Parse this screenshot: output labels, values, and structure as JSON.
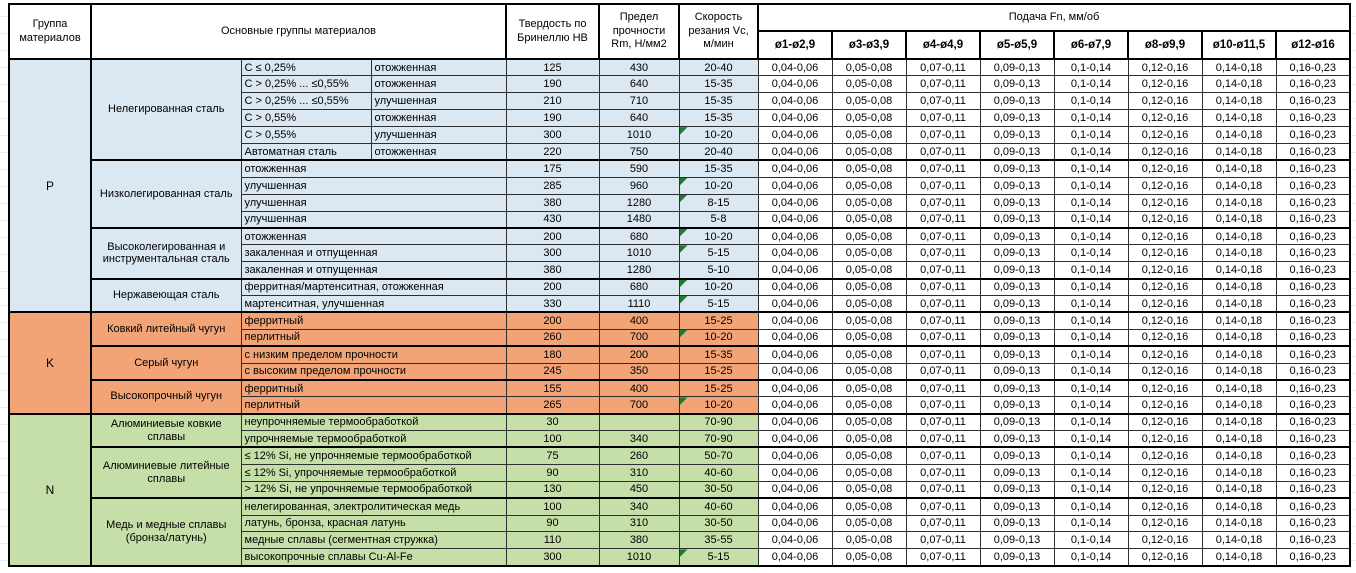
{
  "colors": {
    "steel_blue": "#dbe7f1",
    "cast_iron_orange": "#f2a477",
    "nonferrous_green": "#c6dfa8",
    "flag_green": "#1e7b34",
    "feed_bg": "#ffffff"
  },
  "header": {
    "col_group": "Группа материалов",
    "col_main": "Основные группы материалов",
    "col_hb": "Твердость по Бринеллю HB",
    "col_rm": "Предел прочности Rm, Н/мм2",
    "col_vc": "Скорость резания Vc, м/мин",
    "feed_title": "Подача Fn, мм/об",
    "feed_cols": [
      "ø1-ø2,9",
      "ø3-ø3,9",
      "ø4-ø4,9",
      "ø5-ø5,9",
      "ø6-ø7,9",
      "ø8-ø9,9",
      "ø10-ø11,5",
      "ø12-ø16"
    ]
  },
  "feed_values": [
    "0,04-0,06",
    "0,05-0,08",
    "0,07-0,11",
    "0,09-0,13",
    "0,1-0,14",
    "0,12-0,16",
    "0,14-0,18",
    "0,16-0,23"
  ],
  "sections": [
    {
      "code": "P",
      "bg": "#dbe7f1",
      "subgroups": [
        {
          "name": "Нелегированная сталь",
          "rows": [
            {
              "c1": "C ≤ 0,25%",
              "c2": "отожженная",
              "hb": "125",
              "rm": "430",
              "vc": "20-40"
            },
            {
              "c1": "C > 0,25% ... ≤0,55%",
              "c2": "отожженная",
              "hb": "190",
              "rm": "640",
              "vc": "15-35"
            },
            {
              "c1": "C > 0,25% ... ≤0,55%",
              "c2": "улучшенная",
              "hb": "210",
              "rm": "710",
              "vc": "15-35"
            },
            {
              "c1": "C > 0,55%",
              "c2": "отожженная",
              "hb": "190",
              "rm": "640",
              "vc": "15-35"
            },
            {
              "c1": "C > 0,55%",
              "c2": "улучшенная",
              "hb": "300",
              "rm": "1010",
              "vc": "10-20",
              "flag": true
            },
            {
              "c1": "Автоматная сталь",
              "c2": "отожженная",
              "hb": "220",
              "rm": "750",
              "vc": "20-40"
            }
          ]
        },
        {
          "name": "Низколегированная сталь",
          "rows": [
            {
              "desc": "отожженная",
              "hb": "175",
              "rm": "590",
              "vc": "15-35"
            },
            {
              "desc": "улучшенная",
              "hb": "285",
              "rm": "960",
              "vc": "10-20",
              "flag": true
            },
            {
              "desc": "улучшенная",
              "hb": "380",
              "rm": "1280",
              "vc": "8-15",
              "flag": true
            },
            {
              "desc": "улучшенная",
              "hb": "430",
              "rm": "1480",
              "vc": "5-8"
            }
          ]
        },
        {
          "name": "Высоколегированная и инструментальная сталь",
          "rows": [
            {
              "desc": "отожженная",
              "hb": "200",
              "rm": "680",
              "vc": "10-20",
              "flag": true
            },
            {
              "desc": "закаленная и отпущенная",
              "hb": "300",
              "rm": "1010",
              "vc": "5-15",
              "flag": true
            },
            {
              "desc": "закаленная и отпущенная",
              "hb": "380",
              "rm": "1280",
              "vc": "5-10"
            }
          ]
        },
        {
          "name": "Нержавеющая сталь",
          "rows": [
            {
              "desc": "ферритная/мартенситная, отожженная",
              "hb": "200",
              "rm": "680",
              "vc": "10-20",
              "flag": true
            },
            {
              "desc": "мартенситная, улучшенная",
              "hb": "330",
              "rm": "1110",
              "vc": "5-15",
              "flag": true
            }
          ]
        }
      ]
    },
    {
      "code": "K",
      "bg": "#f2a477",
      "subgroups": [
        {
          "name": "Ковкий литейный чугун",
          "rows": [
            {
              "desc": "ферритный",
              "hb": "200",
              "rm": "400",
              "vc": "15-25"
            },
            {
              "desc": "перлитный",
              "hb": "260",
              "rm": "700",
              "vc": "10-20",
              "flag": true
            }
          ]
        },
        {
          "name": "Серый чугун",
          "rows": [
            {
              "desc": "с низким пределом прочности",
              "hb": "180",
              "rm": "200",
              "vc": "15-35"
            },
            {
              "desc": "с высоким пределом прочности",
              "hb": "245",
              "rm": "350",
              "vc": "15-25"
            }
          ]
        },
        {
          "name": "Высокопрочный чугун",
          "rows": [
            {
              "desc": "ферритный",
              "hb": "155",
              "rm": "400",
              "vc": "15-25"
            },
            {
              "desc": "перлитный",
              "hb": "265",
              "rm": "700",
              "vc": "10-20",
              "flag": true
            }
          ]
        }
      ]
    },
    {
      "code": "N",
      "bg": "#c6dfa8",
      "subgroups": [
        {
          "name": "Алюминиевые ковкие сплавы",
          "rows": [
            {
              "desc": "неупрочняемые термообработкой",
              "hb": "30",
              "rm": "",
              "vc": "70-90"
            },
            {
              "desc": "упрочняемые термообработкой",
              "hb": "100",
              "rm": "340",
              "vc": "70-90"
            }
          ]
        },
        {
          "name": "Алюминиевые литейные сплавы",
          "rows": [
            {
              "desc": "≤ 12% Si, не упрочняемые термообработкой",
              "hb": "75",
              "rm": "260",
              "vc": "50-70"
            },
            {
              "desc": "≤ 12% Si, упрочняемые термообработкой",
              "hb": "90",
              "rm": "310",
              "vc": "40-60"
            },
            {
              "desc": "> 12% Si, не упрочняемые термообработкой",
              "hb": "130",
              "rm": "450",
              "vc": "30-50"
            }
          ]
        },
        {
          "name": "Медь и медные сплавы (бронза/латунь)",
          "rows": [
            {
              "desc": "нелегированная, электролитическая медь",
              "hb": "100",
              "rm": "340",
              "vc": "40-60"
            },
            {
              "desc": "латунь, бронза, красная латунь",
              "hb": "90",
              "rm": "310",
              "vc": "30-50"
            },
            {
              "desc": "медные сплавы (сегментная стружка)",
              "hb": "110",
              "rm": "380",
              "vc": "35-55"
            },
            {
              "desc": "высокопрочные сплавы Cu-Al-Fe",
              "hb": "300",
              "rm": "1010",
              "vc": "5-15",
              "flag": true
            }
          ]
        }
      ]
    }
  ]
}
